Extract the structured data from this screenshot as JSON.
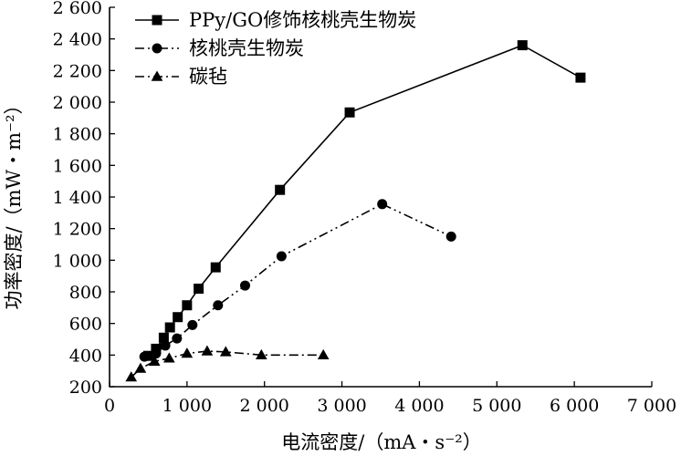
{
  "chart_data": {
    "type": "line",
    "xlabel": "电流密度/（mA・s⁻²）",
    "ylabel": "功率密度/（mW・m⁻²）",
    "xlim": [
      0,
      7000
    ],
    "ylim": [
      200,
      2600
    ],
    "xticks": [
      0,
      1000,
      2000,
      3000,
      4000,
      5000,
      6000,
      7000
    ],
    "yticks": [
      200,
      400,
      600,
      800,
      1000,
      1200,
      1400,
      1600,
      1800,
      2000,
      2200,
      2400,
      2600
    ],
    "xtick_labels": [
      "0",
      "1 000",
      "2 000",
      "3 000",
      "4 000",
      "5 000",
      "6 000",
      "7 000"
    ],
    "ytick_labels": [
      "200",
      "400",
      "600",
      "800",
      "1 000",
      "1 200",
      "1 400",
      "1 600",
      "1 800",
      "2 000",
      "2 200",
      "2 400",
      "2 600"
    ],
    "grid": false,
    "legend_position": "top-left",
    "series": [
      {
        "name": "PPy/GO修饰核桃壳生物炭",
        "marker": "square",
        "line_style": "solid",
        "points": [
          [
            500,
            395
          ],
          [
            600,
            440
          ],
          [
            700,
            510
          ],
          [
            780,
            575
          ],
          [
            880,
            640
          ],
          [
            1000,
            715
          ],
          [
            1150,
            820
          ],
          [
            1370,
            955
          ],
          [
            2200,
            1445
          ],
          [
            3100,
            1935
          ],
          [
            5330,
            2360
          ],
          [
            6080,
            2155
          ]
        ]
      },
      {
        "name": "核桃壳生物炭",
        "marker": "circle",
        "line_style": "dash-dot-dot",
        "points": [
          [
            450,
            390
          ],
          [
            600,
            410
          ],
          [
            720,
            460
          ],
          [
            870,
            505
          ],
          [
            1070,
            590
          ],
          [
            1400,
            715
          ],
          [
            1750,
            840
          ],
          [
            2220,
            1025
          ],
          [
            3520,
            1355
          ],
          [
            4410,
            1150
          ]
        ]
      },
      {
        "name": "碳毡",
        "marker": "triangle",
        "line_style": "dash-dot",
        "points": [
          [
            280,
            260
          ],
          [
            400,
            315
          ],
          [
            580,
            360
          ],
          [
            770,
            380
          ],
          [
            1000,
            410
          ],
          [
            1260,
            425
          ],
          [
            1500,
            420
          ],
          [
            1960,
            400
          ],
          [
            2760,
            400
          ]
        ]
      }
    ]
  }
}
